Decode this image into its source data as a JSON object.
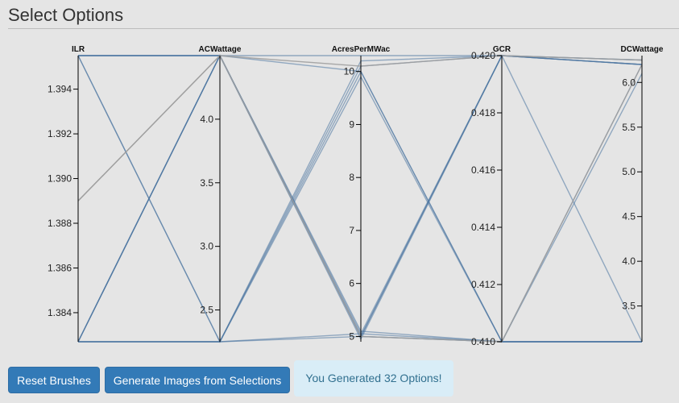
{
  "header": {
    "title": "Select Options"
  },
  "buttons": {
    "reset": "Reset Brushes",
    "generate": "Generate Images from Selections"
  },
  "status": {
    "message": "You Generated 32 Options!"
  },
  "colors": {
    "line": "#4a74a0",
    "axis": "#000000",
    "button": "#337ab7",
    "alert_bg": "#d9edf7",
    "alert_text": "#31708f"
  },
  "chart_data": {
    "type": "parallel-coordinates",
    "dimensions": [
      {
        "name": "ILR",
        "domain": [
          1.3827,
          1.3955
        ],
        "ticks": [
          1.384,
          1.386,
          1.388,
          1.39,
          1.392,
          1.394
        ],
        "tick_labels": [
          "1.384",
          "1.386",
          "1.388",
          "1.390",
          "1.392",
          "1.394"
        ]
      },
      {
        "name": "ACWattage",
        "domain": [
          2.25,
          4.5
        ],
        "ticks": [
          2.5,
          3.0,
          3.5,
          4.0
        ],
        "tick_labels": [
          "2.5",
          "3.0",
          "3.5",
          "4.0"
        ]
      },
      {
        "name": "AcresPerMWac",
        "domain": [
          4.9,
          10.3
        ],
        "ticks": [
          5,
          6,
          7,
          8,
          9,
          10
        ],
        "tick_labels": [
          "5",
          "6",
          "7",
          "8",
          "9",
          "10"
        ]
      },
      {
        "name": "GCR",
        "domain": [
          0.41,
          0.42
        ],
        "ticks": [
          0.41,
          0.412,
          0.414,
          0.416,
          0.418,
          0.42
        ],
        "tick_labels": [
          "0.410",
          "0.412",
          "0.414",
          "0.416",
          "0.418",
          "0.420"
        ]
      },
      {
        "name": "DCWattage",
        "domain": [
          3.1,
          6.3
        ],
        "ticks": [
          3.5,
          4.0,
          4.5,
          5.0,
          5.5,
          6.0
        ],
        "tick_labels": [
          "3.5",
          "4.0",
          "4.5",
          "5.0",
          "5.5",
          "6.0"
        ]
      }
    ],
    "records": [
      [
        1.3827,
        4.5,
        5.0,
        0.41,
        3.1
      ],
      [
        1.3827,
        4.5,
        5.05,
        0.41,
        3.1
      ],
      [
        1.3827,
        4.5,
        5.0,
        0.42,
        6.2
      ],
      [
        1.3827,
        4.5,
        4.95,
        0.42,
        6.25
      ],
      [
        1.3827,
        2.25,
        10.2,
        0.42,
        6.2
      ],
      [
        1.3827,
        2.25,
        10.1,
        0.42,
        6.25
      ],
      [
        1.3827,
        2.25,
        5.0,
        0.41,
        3.1
      ],
      [
        1.3827,
        2.25,
        5.05,
        0.42,
        6.2
      ],
      [
        1.3955,
        4.5,
        5.1,
        0.41,
        3.1
      ],
      [
        1.3955,
        4.5,
        10.0,
        0.41,
        6.2
      ],
      [
        1.3955,
        2.25,
        9.9,
        0.41,
        6.1
      ],
      [
        1.3955,
        2.25,
        10.0,
        0.41,
        3.1
      ],
      [
        1.3955,
        4.5,
        10.3,
        0.42,
        6.2
      ],
      [
        1.3955,
        4.5,
        5.0,
        0.42,
        3.1
      ],
      [
        1.389,
        4.5,
        10.1,
        0.42,
        6.25
      ],
      [
        1.389,
        4.5,
        5.0,
        0.41,
        6.2
      ]
    ]
  }
}
